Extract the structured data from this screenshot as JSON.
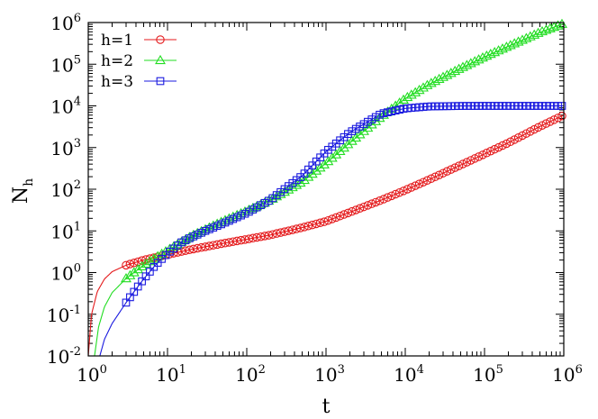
{
  "chart_data": {
    "type": "scatter",
    "xlabel": "t",
    "ylabel_main": "N",
    "ylabel_sub": "h",
    "xscale": "log",
    "yscale": "log",
    "xlim": [
      1,
      1000000
    ],
    "ylim": [
      0.01,
      1000000
    ],
    "grid": false,
    "legend_position": "top-left",
    "x_ticks": [
      {
        "base": "10",
        "exp": "0"
      },
      {
        "base": "10",
        "exp": "1"
      },
      {
        "base": "10",
        "exp": "2"
      },
      {
        "base": "10",
        "exp": "3"
      },
      {
        "base": "10",
        "exp": "4"
      },
      {
        "base": "10",
        "exp": "5"
      },
      {
        "base": "10",
        "exp": "6"
      }
    ],
    "y_ticks": [
      {
        "base": "10",
        "exp": "-2"
      },
      {
        "base": "10",
        "exp": "-1"
      },
      {
        "base": "10",
        "exp": "0"
      },
      {
        "base": "10",
        "exp": "1"
      },
      {
        "base": "10",
        "exp": "2"
      },
      {
        "base": "10",
        "exp": "3"
      },
      {
        "base": "10",
        "exp": "4"
      },
      {
        "base": "10",
        "exp": "5"
      },
      {
        "base": "10",
        "exp": "6"
      }
    ],
    "series": [
      {
        "name": "h=1",
        "marker": "circle",
        "color": "#e41a1c",
        "points": [
          [
            1,
            0.01
          ],
          [
            1.1,
            0.1
          ],
          [
            1.3,
            0.35
          ],
          [
            1.6,
            0.7
          ],
          [
            2,
            1.05
          ],
          [
            3,
            1.5
          ],
          [
            5,
            2.0
          ],
          [
            10,
            2.7
          ],
          [
            20,
            3.6
          ],
          [
            50,
            5.0
          ],
          [
            100,
            6.3
          ],
          [
            200,
            8.0
          ],
          [
            500,
            12
          ],
          [
            1000,
            17
          ],
          [
            2000,
            28
          ],
          [
            5000,
            55
          ],
          [
            10000,
            95
          ],
          [
            20000,
            170
          ],
          [
            50000,
            380
          ],
          [
            100000,
            700
          ],
          [
            200000,
            1300
          ],
          [
            500000,
            3200
          ],
          [
            1000000,
            6000
          ]
        ]
      },
      {
        "name": "h=2",
        "marker": "triangle",
        "color": "#22dd22",
        "points": [
          [
            1.2,
            0.01
          ],
          [
            1.35,
            0.05
          ],
          [
            1.6,
            0.15
          ],
          [
            2,
            0.33
          ],
          [
            3,
            0.72
          ],
          [
            5,
            1.5
          ],
          [
            10,
            3.4
          ],
          [
            20,
            7.5
          ],
          [
            50,
            17
          ],
          [
            100,
            30
          ],
          [
            200,
            55
          ],
          [
            500,
            150
          ],
          [
            1000,
            420
          ],
          [
            2000,
            1300
          ],
          [
            5000,
            5500
          ],
          [
            10000,
            15000
          ],
          [
            20000,
            33000
          ],
          [
            50000,
            80000
          ],
          [
            100000,
            150000
          ],
          [
            200000,
            270000
          ],
          [
            500000,
            580000
          ],
          [
            1000000,
            950000
          ]
        ]
      },
      {
        "name": "h=3",
        "marker": "square",
        "color": "#1a1adf",
        "points": [
          [
            1.4,
            0.01
          ],
          [
            1.6,
            0.025
          ],
          [
            2,
            0.06
          ],
          [
            3,
            0.19
          ],
          [
            4,
            0.4
          ],
          [
            5,
            0.7
          ],
          [
            7,
            1.5
          ],
          [
            10,
            2.9
          ],
          [
            15,
            5.3
          ],
          [
            20,
            7.0
          ],
          [
            30,
            10
          ],
          [
            50,
            15
          ],
          [
            100,
            27
          ],
          [
            200,
            56
          ],
          [
            500,
            210
          ],
          [
            1000,
            800
          ],
          [
            2000,
            2300
          ],
          [
            5000,
            6500
          ],
          [
            10000,
            8700
          ],
          [
            20000,
            9700
          ],
          [
            50000,
            9950
          ],
          [
            100000,
            10000
          ],
          [
            1000000,
            10000
          ]
        ]
      }
    ]
  }
}
